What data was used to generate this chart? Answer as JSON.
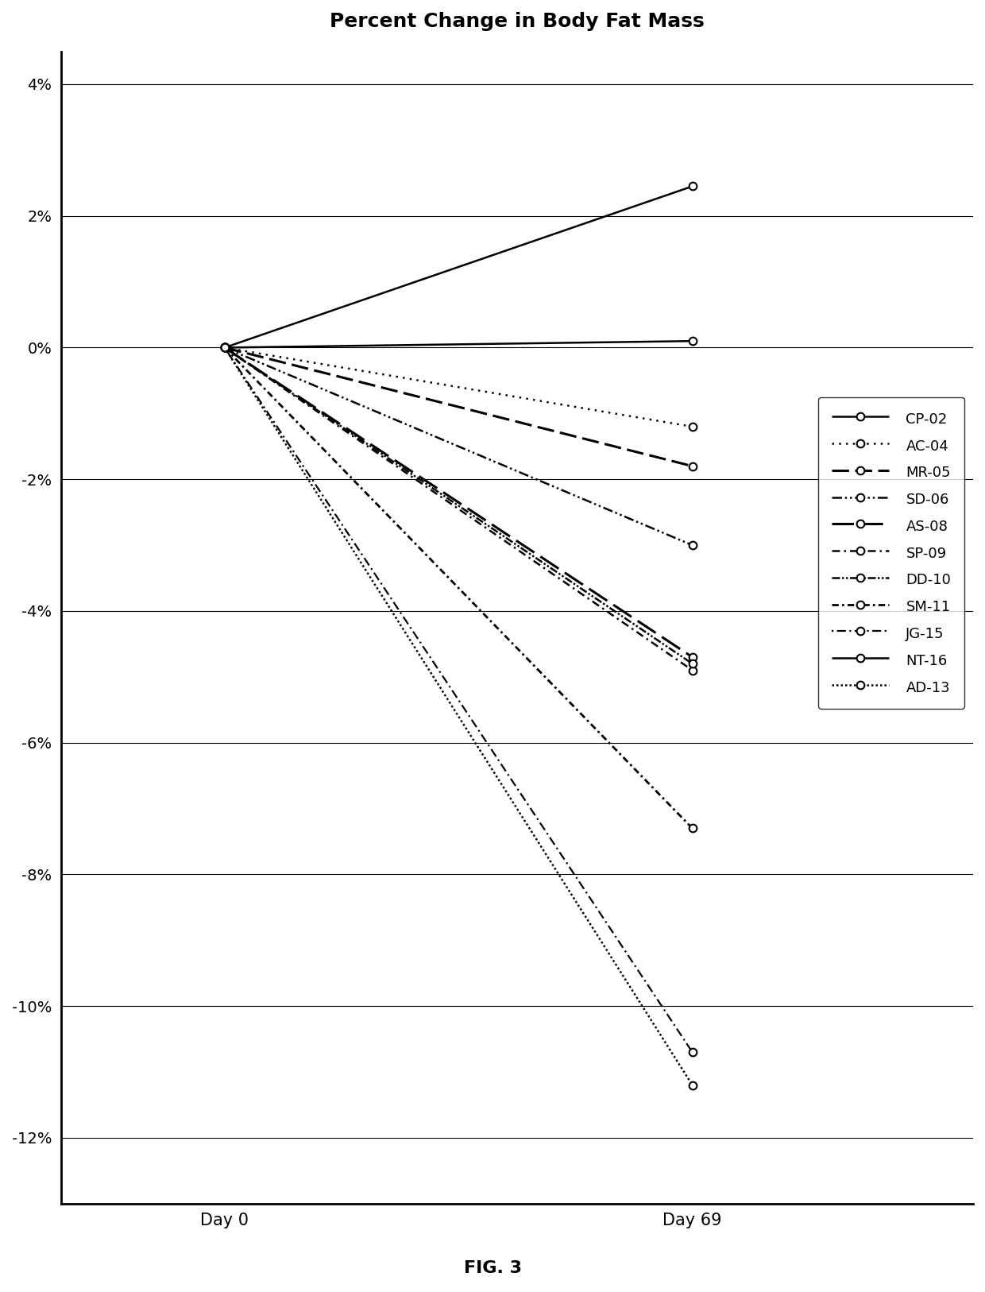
{
  "title": "Percent Change in Body Fat Mass",
  "xlabel_day0": "Day 0",
  "xlabel_day69": "Day 69",
  "fig_label": "FIG. 3",
  "ylim": [
    -0.13,
    0.045
  ],
  "yticks": [
    -0.12,
    -0.1,
    -0.08,
    -0.06,
    -0.04,
    -0.02,
    0.0,
    0.02,
    0.04
  ],
  "ytick_labels": [
    "-12%",
    "-10%",
    "-8%",
    "-6%",
    "-4%",
    "-2%",
    "0%",
    "2%",
    "4%"
  ],
  "series": [
    {
      "label": "CP-02",
      "day0": 0.0,
      "day69": 0.001,
      "ls_key": "solid",
      "lw": 1.8
    },
    {
      "label": "AC-04",
      "day0": 0.0,
      "day69": -0.012,
      "ls_key": "dotted_fine",
      "lw": 1.8
    },
    {
      "label": "MR-05",
      "day0": 0.0,
      "day69": -0.018,
      "ls_key": "dashed_long",
      "lw": 2.2
    },
    {
      "label": "SD-06",
      "day0": 0.0,
      "day69": -0.03,
      "ls_key": "dashdotdot",
      "lw": 1.8
    },
    {
      "label": "AS-08",
      "day0": 0.0,
      "day69": -0.047,
      "ls_key": "longdash",
      "lw": 2.2
    },
    {
      "label": "SP-09",
      "day0": 0.0,
      "day69": -0.049,
      "ls_key": "dash_dot",
      "lw": 1.8
    },
    {
      "label": "DD-10",
      "day0": 0.0,
      "day69": -0.048,
      "ls_key": "dash_dotdot",
      "lw": 1.8
    },
    {
      "label": "SM-11",
      "day0": 0.0,
      "day69": -0.073,
      "ls_key": "longdash_dot",
      "lw": 2.0
    },
    {
      "label": "JG-15",
      "day0": 0.0,
      "day69": -0.107,
      "ls_key": "dot_dash",
      "lw": 1.6
    },
    {
      "label": "NT-16",
      "day0": 0.0,
      "day69": 0.0245,
      "ls_key": "solid2",
      "lw": 1.8
    },
    {
      "label": "AD-13",
      "day0": 0.0,
      "day69": -0.112,
      "ls_key": "dense_dot",
      "lw": 1.8
    }
  ],
  "background_color": "#ffffff",
  "line_color": "#000000",
  "title_fontsize": 18,
  "axis_fontsize": 15,
  "tick_fontsize": 14,
  "legend_fontsize": 13
}
